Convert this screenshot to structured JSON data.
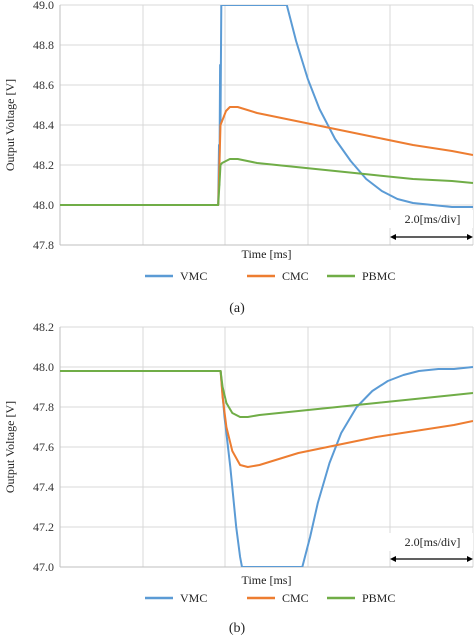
{
  "chart_data": [
    {
      "type": "line",
      "panel": "(a)",
      "caption": "(a)",
      "xlabel": "Time [ms]",
      "ylabel": "Output Voltage [V]",
      "ylim": [
        47.8,
        49.0
      ],
      "yticks": [
        "47.8",
        "48.0",
        "48.2",
        "48.4",
        "48.6",
        "48.8",
        "49.0"
      ],
      "xlim": [
        -4.06,
        6.54
      ],
      "grid": true,
      "legend_position": "bottom-center",
      "scale_note": "2.0[ms/div]",
      "series": [
        {
          "name": "VMC",
          "color": "#5b9bd5",
          "x": [
            -4.06,
            0.0,
            0.02,
            0.03,
            0.05,
            0.06,
            0.08,
            0.1,
            1.76,
            2.0,
            2.3,
            2.6,
            3.0,
            3.4,
            3.8,
            4.2,
            4.6,
            5.0,
            5.5,
            6.0,
            6.54
          ],
          "y": [
            48.0,
            48.0,
            48.3,
            48.1,
            48.7,
            48.4,
            49.0,
            49.0,
            49.0,
            48.82,
            48.63,
            48.48,
            48.33,
            48.22,
            48.13,
            48.07,
            48.03,
            48.01,
            48.0,
            47.99,
            47.99
          ]
        },
        {
          "name": "CMC",
          "color": "#ed7d31",
          "x": [
            -4.06,
            0.0,
            0.03,
            0.06,
            0.1,
            0.2,
            0.3,
            0.5,
            1.0,
            2.0,
            3.0,
            4.0,
            5.0,
            6.0,
            6.54
          ],
          "y": [
            48.0,
            48.0,
            48.2,
            48.4,
            48.42,
            48.47,
            48.49,
            48.49,
            48.46,
            48.42,
            48.38,
            48.34,
            48.3,
            48.27,
            48.25
          ]
        },
        {
          "name": "PBMC",
          "color": "#70ad47",
          "x": [
            -4.06,
            0.0,
            0.03,
            0.06,
            0.1,
            0.2,
            0.3,
            0.5,
            1.0,
            2.0,
            3.0,
            4.0,
            5.0,
            6.0,
            6.54
          ],
          "y": [
            48.0,
            48.0,
            48.1,
            48.2,
            48.21,
            48.22,
            48.23,
            48.23,
            48.21,
            48.19,
            48.17,
            48.15,
            48.13,
            48.12,
            48.11
          ]
        }
      ]
    },
    {
      "type": "line",
      "panel": "(b)",
      "caption": "(b)",
      "xlabel": "Time [ms]",
      "ylabel": "Output Voltage [V]",
      "ylim": [
        47.0,
        48.2
      ],
      "yticks": [
        "47.0",
        "47.2",
        "47.4",
        "47.6",
        "47.8",
        "48.0",
        "48.2"
      ],
      "xlim": [
        -4.13,
        6.49
      ],
      "grid": true,
      "legend_position": "bottom-center",
      "scale_note": "2.0[ms/div]",
      "series": [
        {
          "name": "VMC",
          "color": "#5b9bd5",
          "x": [
            -4.13,
            0.0,
            0.1,
            0.25,
            0.4,
            0.5,
            0.55,
            2.1,
            2.3,
            2.5,
            2.8,
            3.1,
            3.5,
            3.9,
            4.3,
            4.7,
            5.1,
            5.6,
            6.0,
            6.49
          ],
          "y": [
            47.98,
            47.98,
            47.75,
            47.5,
            47.2,
            47.05,
            47.0,
            47.0,
            47.15,
            47.32,
            47.52,
            47.67,
            47.8,
            47.88,
            47.93,
            47.96,
            47.98,
            47.99,
            47.99,
            48.0
          ]
        },
        {
          "name": "CMC",
          "color": "#ed7d31",
          "x": [
            -4.13,
            0.0,
            0.05,
            0.15,
            0.3,
            0.5,
            0.7,
            1.0,
            1.5,
            2.0,
            3.0,
            4.0,
            5.0,
            6.0,
            6.49
          ],
          "y": [
            47.98,
            47.98,
            47.85,
            47.7,
            47.58,
            47.51,
            47.5,
            47.51,
            47.54,
            47.57,
            47.61,
            47.65,
            47.68,
            47.71,
            47.73
          ]
        },
        {
          "name": "PBMC",
          "color": "#70ad47",
          "x": [
            -4.13,
            0.0,
            0.05,
            0.15,
            0.3,
            0.5,
            0.7,
            1.0,
            1.5,
            2.0,
            3.0,
            4.0,
            5.0,
            6.0,
            6.49
          ],
          "y": [
            47.98,
            47.98,
            47.9,
            47.82,
            47.77,
            47.75,
            47.75,
            47.76,
            47.77,
            47.78,
            47.8,
            47.82,
            47.84,
            47.86,
            47.87
          ]
        }
      ]
    }
  ]
}
